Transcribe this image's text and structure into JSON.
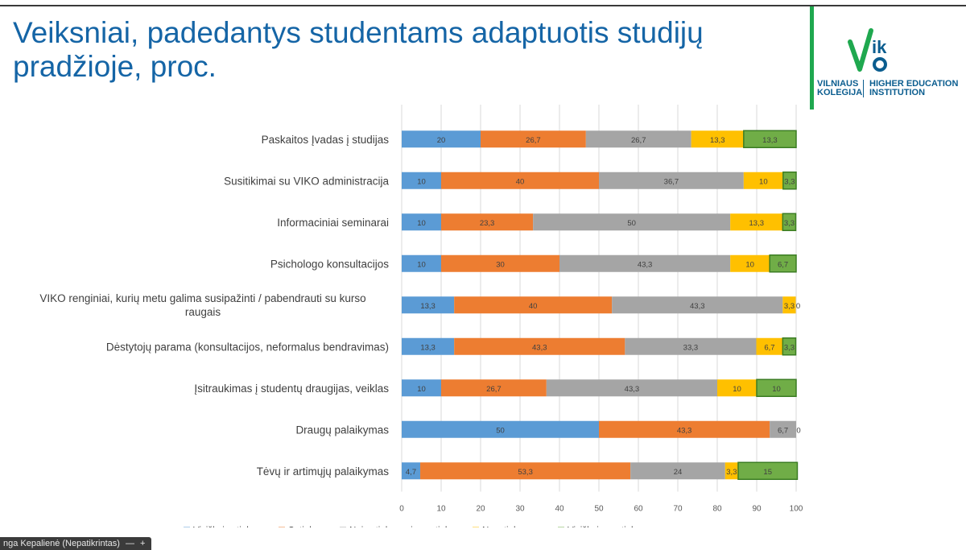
{
  "slide": {
    "title": "Veiksniai, padedantys studentams adaptuotis studijų pradžioje, proc."
  },
  "logo": {
    "mark": "ik",
    "left_line1": "VILNIAUS",
    "left_line2": "KOLEGIJA",
    "right_line1": "HIGHER EDUCATION",
    "right_line2": "INSTITUTION",
    "colors": {
      "green": "#1fa84f",
      "blue": "#0b5d8f",
      "accent": "#1565a6"
    }
  },
  "footer": {
    "name": "nga Kepalienė (Nepatikrintas)",
    "minus": "—",
    "plus": "+"
  },
  "chart_data": {
    "type": "bar",
    "orientation": "horizontal",
    "stacked": true,
    "title": "",
    "xlabel": "",
    "ylabel": "",
    "xlim": [
      0,
      100
    ],
    "xticks": [
      "0",
      "10",
      "20",
      "30",
      "40",
      "50",
      "60",
      "70",
      "80",
      "90",
      "100"
    ],
    "grid": true,
    "legend_position": "bottom",
    "categories": [
      "Paskaitos Įvadas į studijas",
      "Susitikimai su VIKO administracija",
      "Informaciniai seminarai",
      "Psichologo konsultacijos",
      "VIKO renginiai, kurių metu galima susipažinti / pabendrauti su kurso draugais",
      "Dėstytojų parama (konsultacijos, neformalus bendravimas)",
      "Įsitraukimas į studentų draugijas, veiklas",
      "Draugų palaikymas",
      "Tėvų ir artimųjų palaikymas"
    ],
    "series": [
      {
        "name": "Visiškai sutinku",
        "color": "#5b9bd5",
        "values": [
          20,
          10,
          10,
          10,
          13.3,
          13.3,
          10,
          50,
          4.7
        ],
        "labels": [
          "20",
          "10",
          "10",
          "10",
          "13,3",
          "13,3",
          "10",
          "50",
          "4,7"
        ]
      },
      {
        "name": "Sutinku",
        "color": "#ed7d31",
        "values": [
          26.7,
          40,
          23.3,
          30,
          40,
          43.3,
          26.7,
          43.3,
          53.3
        ],
        "labels": [
          "26,7",
          "40",
          "23,3",
          "30",
          "40",
          "43,3",
          "26,7",
          "43,3",
          "53,3"
        ]
      },
      {
        "name": "Nei sutinku, nei nesutinku",
        "color": "#a5a5a5",
        "values": [
          26.7,
          36.7,
          50,
          43.3,
          43.3,
          33.3,
          43.3,
          6.7,
          24
        ],
        "labels": [
          "26,7",
          "36,7",
          "50",
          "43,3",
          "43,3",
          "33,3",
          "43,3",
          "6,7",
          "24"
        ]
      },
      {
        "name": "Nesutinku",
        "color": "#ffc000",
        "values": [
          13.3,
          10,
          13.3,
          10,
          3.3,
          6.7,
          10,
          0,
          3.3
        ],
        "labels": [
          "13,3",
          "10",
          "13,3",
          "10",
          "3,3",
          "6,7",
          "10",
          "",
          "3,3"
        ]
      },
      {
        "name": "Visiškai nesutinku",
        "color": "#70ad47",
        "values": [
          13.3,
          3.3,
          3.3,
          6.7,
          0,
          3.3,
          10,
          0,
          15
        ],
        "labels": [
          "13,3",
          "3,3",
          "3,3",
          "6,7",
          "0",
          "3,3",
          "10",
          "0",
          "15"
        ]
      }
    ]
  }
}
